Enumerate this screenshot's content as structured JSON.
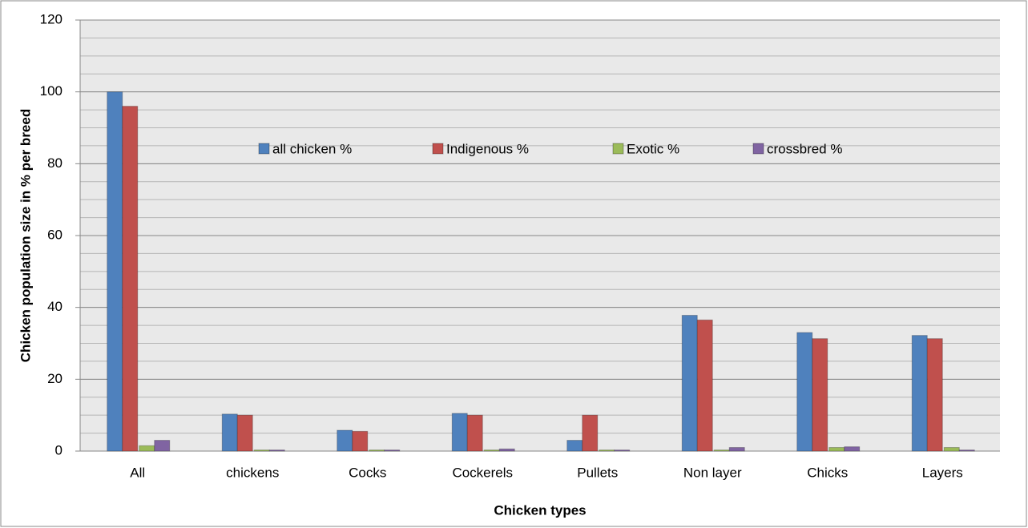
{
  "chart_data": {
    "type": "bar",
    "x_label": "Chicken types",
    "y_label": "Chicken population size in %  per breed",
    "categories": [
      "All",
      "chickens",
      "Cocks",
      "Cockerels",
      "Pullets",
      "Non layer",
      "Chicks",
      "Layers"
    ],
    "series": [
      {
        "name": "all chicken %",
        "color": "#4f81bd",
        "values": [
          100,
          10.3,
          5.8,
          10.5,
          3,
          37.8,
          33,
          32.2
        ]
      },
      {
        "name": "Indigenous %",
        "color": "#c0504d",
        "values": [
          96,
          10,
          5.5,
          10,
          10,
          36.5,
          31.3,
          31.3
        ]
      },
      {
        "name": "Exotic %",
        "color": "#9bbb59",
        "values": [
          1.5,
          0.3,
          0.3,
          0.3,
          0.3,
          0.3,
          1,
          1
        ]
      },
      {
        "name": "crossbred %",
        "color": "#8064a2",
        "values": [
          3,
          0.3,
          0.3,
          0.6,
          0.3,
          1,
          1.2,
          0.3
        ]
      }
    ],
    "ylim": [
      0,
      120
    ],
    "yticks": [
      0,
      20,
      40,
      60,
      80,
      100,
      120
    ],
    "grid": true,
    "minor_grid_step": 5
  }
}
